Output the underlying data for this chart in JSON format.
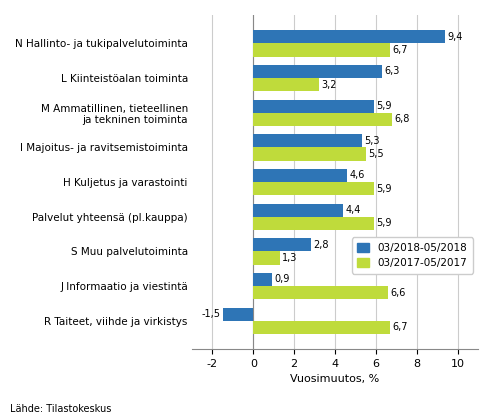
{
  "categories": [
    "N Hallinto- ja tukipalvelutoiminta",
    "L Kiinteistöalan toiminta",
    "M Ammatillinen, tieteellinen\nja tekninen toiminta",
    "I Majoitus- ja ravitsemistoiminta",
    "H Kuljetus ja varastointi",
    "Palvelut yhteensä (pl.kauppa)",
    "S Muu palvelutoiminta",
    "J Informaatio ja viestintä",
    "R Taiteet, viihde ja virkistys"
  ],
  "series1_label": "03/2018-05/2018",
  "series2_label": "03/2017-05/2017",
  "series1_values": [
    9.4,
    6.3,
    5.9,
    5.3,
    4.6,
    4.4,
    2.8,
    0.9,
    -1.5
  ],
  "series2_values": [
    6.7,
    3.2,
    6.8,
    5.5,
    5.9,
    5.9,
    1.3,
    6.6,
    6.7
  ],
  "series1_color": "#2E75B6",
  "series2_color": "#BFDB3B",
  "xlabel": "Vuosimuutos, %",
  "xlim": [
    -3,
    11
  ],
  "xticks": [
    -2,
    0,
    2,
    4,
    6,
    8,
    10
  ],
  "source": "Lähde: Tilastokeskus",
  "bar_height": 0.38,
  "background_color": "#FFFFFF",
  "grid_color": "#CCCCCC",
  "value_fontsize": 7.0,
  "label_fontsize": 7.5,
  "tick_fontsize": 8.0,
  "legend_fontsize": 7.5
}
